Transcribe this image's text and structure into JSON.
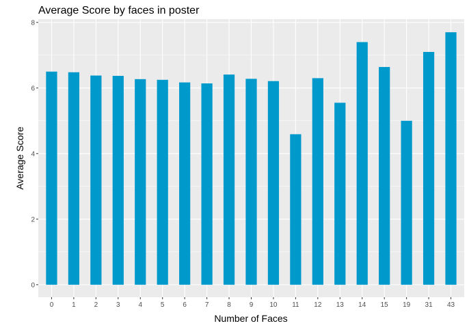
{
  "chart_data": {
    "type": "bar",
    "title": "Average Score by faces in poster",
    "xlabel": "Number of Faces",
    "ylabel": "Average Score",
    "categories": [
      "0",
      "1",
      "2",
      "3",
      "4",
      "5",
      "6",
      "7",
      "8",
      "9",
      "10",
      "11",
      "12",
      "13",
      "14",
      "15",
      "19",
      "31",
      "43"
    ],
    "values": [
      6.5,
      6.48,
      6.38,
      6.37,
      6.27,
      6.25,
      6.17,
      6.14,
      6.41,
      6.28,
      6.21,
      4.59,
      6.3,
      5.55,
      7.4,
      6.64,
      5.0,
      7.1,
      7.7
    ],
    "ylim": [
      -0.38,
      8.1
    ],
    "yticks": [
      0,
      2,
      4,
      6,
      8
    ],
    "grid": true,
    "colors": {
      "bar": "#0099cc",
      "panel": "#ebebeb",
      "gridline": "#ffffff"
    }
  }
}
